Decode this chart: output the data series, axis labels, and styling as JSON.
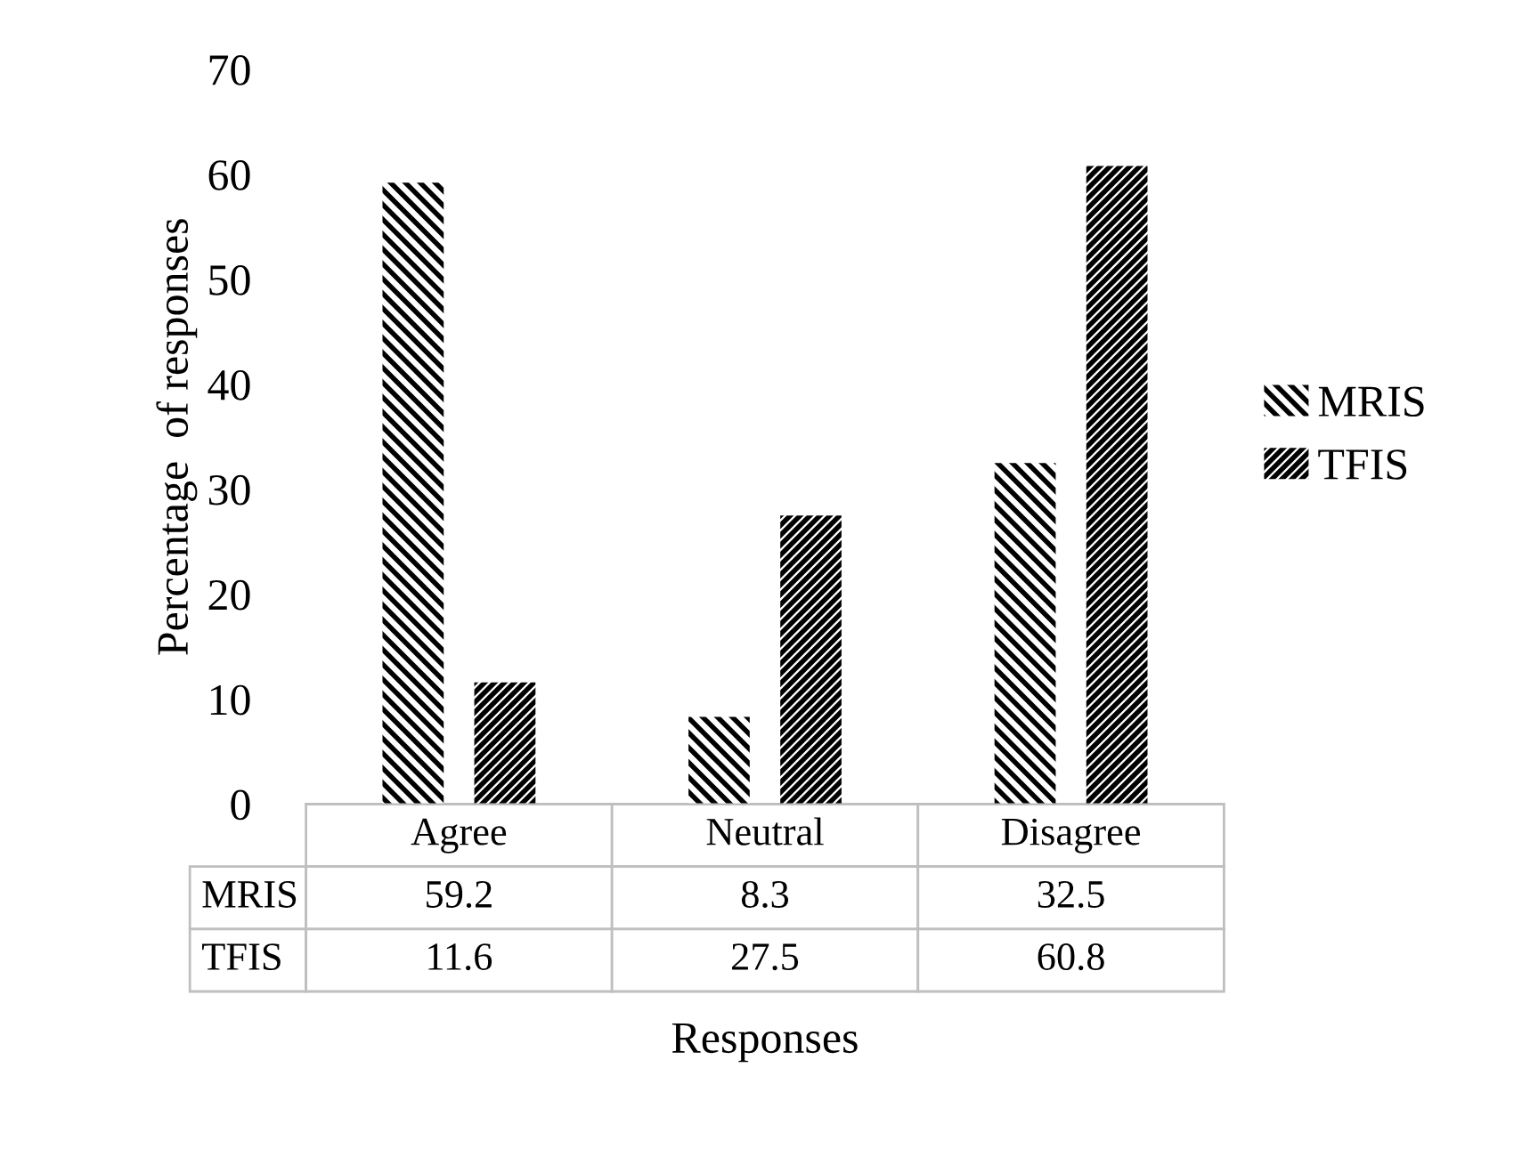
{
  "chart_data": {
    "type": "bar",
    "xlabel": "Responses",
    "ylabel": "Percentage  of responses",
    "categories": [
      "Agree",
      "Neutral",
      "Disagree"
    ],
    "series": [
      {
        "name": "MRIS",
        "color": "#000000",
        "values": [
          59.2,
          8.3,
          32.5
        ]
      },
      {
        "name": "TFIS",
        "color": "#000000",
        "values": [
          11.6,
          27.5,
          60.8
        ]
      }
    ],
    "ylim": [
      0,
      70
    ],
    "yticks": [
      0,
      10,
      20,
      30,
      40,
      50,
      60,
      70
    ],
    "data_labels": true,
    "legend": "right",
    "grid": false
  }
}
